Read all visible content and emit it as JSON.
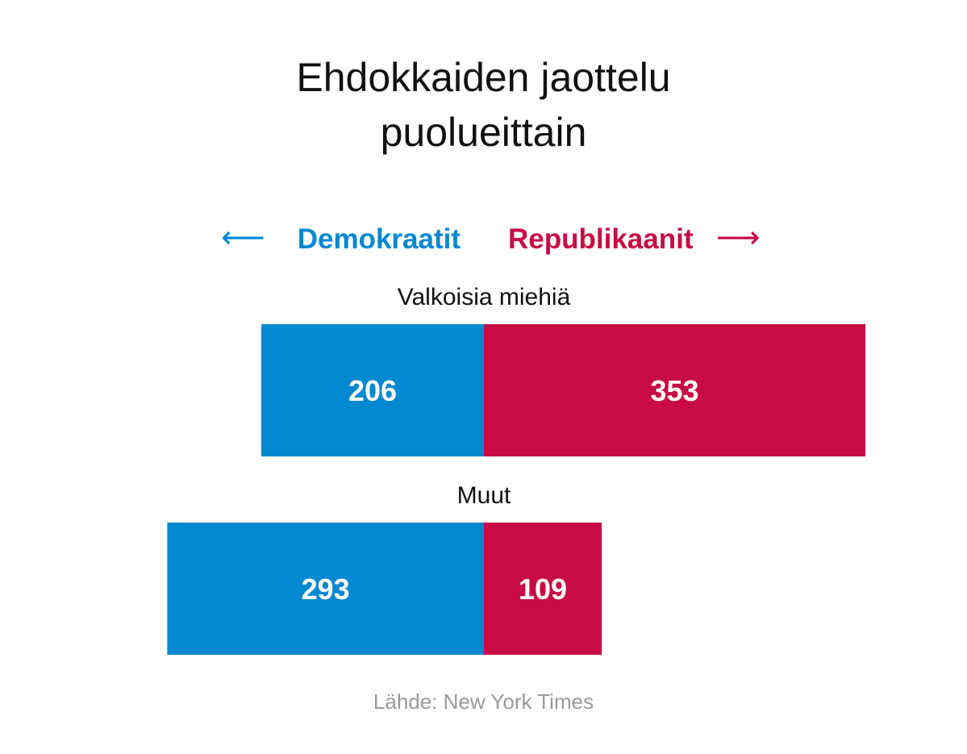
{
  "colors": {
    "democrats": "#0088d1",
    "republicans": "#c80a45"
  },
  "legend": {
    "left_arrow": "⟵",
    "right_arrow": "⟶",
    "democrats": "Demokraatit",
    "republicans": "Republikaanit"
  },
  "source": "Lähde: New York Times",
  "chart_data": {
    "type": "bar",
    "orientation": "horizontal",
    "layout": "diverging",
    "title": "Ehdokkaiden jaottelu puolueittain",
    "title_lines": [
      "Ehdokkaiden jaottelu",
      "puolueittain"
    ],
    "categories": [
      "Valkoisia miehiä",
      "Muut"
    ],
    "series": [
      {
        "name": "Demokraatit",
        "direction": "left",
        "values": [
          206,
          293
        ]
      },
      {
        "name": "Republikaanit",
        "direction": "right",
        "values": [
          353,
          109
        ]
      }
    ],
    "data_labels": true,
    "grid": false,
    "legend_position": "top"
  }
}
